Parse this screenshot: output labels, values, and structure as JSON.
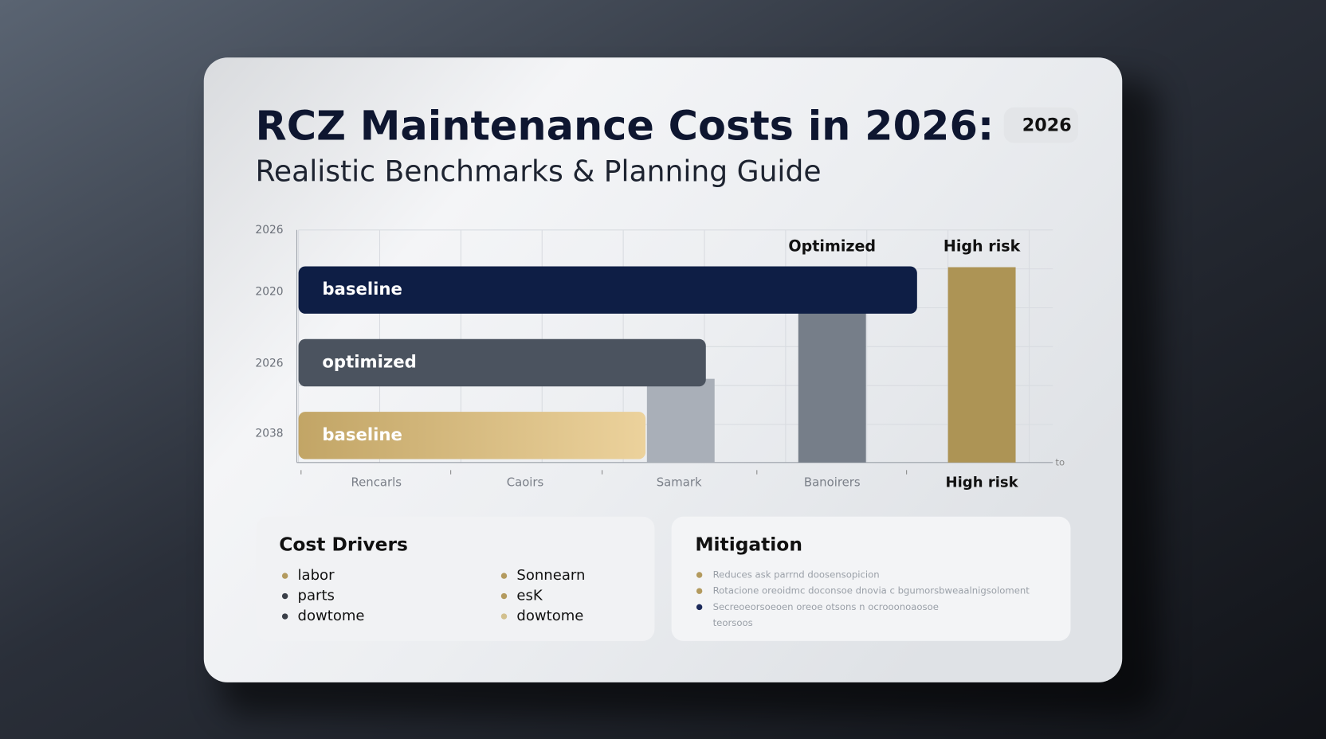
{
  "header": {
    "title": "RCZ Maintenance Costs in 2026:",
    "subtitle": "Realistic Benchmarks & Planning Guide",
    "badge": "2026"
  },
  "chart_data": {
    "type": "bar",
    "xlim": [
      0,
      100
    ],
    "ylim": [
      0,
      100
    ],
    "y_labels": [
      "2026",
      "2020",
      "2026",
      "2038"
    ],
    "x_labels": [
      "Rencarls",
      "Caoirs",
      "Samark",
      "Banoirers",
      "High risk"
    ],
    "x_axis_end": "to",
    "h_bars": [
      {
        "label": "baseline",
        "value": 82,
        "color": "#0e1e45"
      },
      {
        "label": "optimized",
        "value": 54,
        "color": "#4b535f"
      },
      {
        "label": "baseline",
        "value": 46,
        "color": "#c9ad6c"
      }
    ],
    "v_bars": [
      {
        "label": null,
        "value": 36,
        "color": "#a9afb8"
      },
      {
        "label": "Optimized",
        "value": 79,
        "color": "#767e89"
      },
      {
        "label": "High risk",
        "value": 84,
        "color": "#ad9455"
      }
    ]
  },
  "panels": [
    {
      "title": "Cost Drivers",
      "items": [
        {
          "text": "labor",
          "color": "#b39a5e"
        },
        {
          "text": "parts",
          "color": "#3a3f48"
        },
        {
          "text": "dowtome",
          "color": "#3a3f48"
        },
        {
          "text": "Sonnearn",
          "color": "#b39a5e"
        },
        {
          "text": "esK",
          "color": "#b39a5e"
        },
        {
          "text": "dowtome",
          "color": "#d2c08e"
        }
      ]
    },
    {
      "title": "Mitigation",
      "items": [
        {
          "text": "Reduces ask parrnd doosensopicion",
          "color": "#b39a5e"
        },
        {
          "text": "Rotacione oreoidmc doconsoe dnovia c bgumorsbweaalnigsoloment",
          "color": "#b39a5e"
        },
        {
          "text": "Secreoeorsoeoen oreoe otsons n ocrooonoaosoe",
          "color": "#1c2a5a"
        },
        {
          "text": "teorsoos",
          "color": null
        }
      ]
    }
  ]
}
